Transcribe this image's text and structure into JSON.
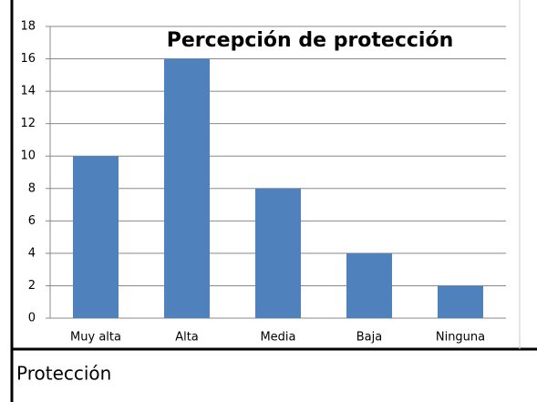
{
  "chart_data": {
    "type": "bar",
    "title": "Percepción de protección",
    "categories": [
      "Muy alta",
      "Alta",
      "Media",
      "Baja",
      "Ninguna"
    ],
    "values": [
      10,
      16,
      8,
      4,
      2
    ],
    "color": "#4f81bd",
    "ylim": [
      0,
      18
    ],
    "yticks": [
      0,
      2,
      4,
      6,
      8,
      10,
      12,
      14,
      16,
      18
    ],
    "grid": true
  },
  "caption": "Protección"
}
